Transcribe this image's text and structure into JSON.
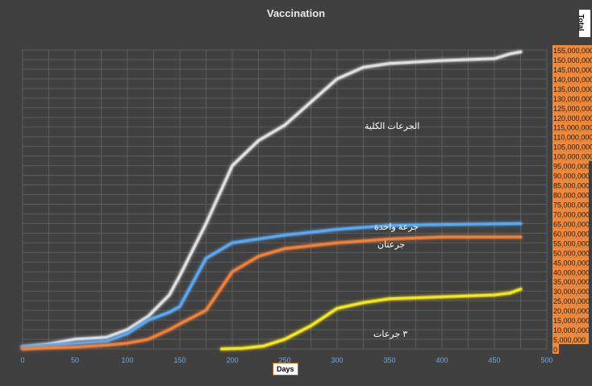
{
  "chart_data": {
    "type": "line",
    "title": "Vaccination",
    "xlabel": "Days",
    "ylabel": "Total",
    "xlim": [
      0,
      500
    ],
    "ylim": [
      0,
      155000000
    ],
    "x_ticks": [
      "0",
      "50",
      "100",
      "150",
      "200",
      "250",
      "300",
      "350",
      "400",
      "450",
      "500"
    ],
    "y_ticks": [
      "0",
      "5,000,000",
      "10,000,000",
      "15,000,000",
      "20,000,000",
      "25,000,000",
      "30,000,000",
      "35,000,000",
      "40,000,000",
      "45,000,000",
      "50,000,000",
      "55,000,000",
      "60,000,000",
      "65,000,000",
      "70,000,000",
      "75,000,000",
      "80,000,000",
      "85,000,000",
      "90,000,000",
      "95,000,000",
      "100,000,000",
      "105,000,000",
      "110,000,000",
      "115,000,000",
      "120,000,000",
      "125,000,000",
      "130,000,000",
      "135,000,000",
      "140,000,000",
      "145,000,000",
      "150,000,000",
      "155,000,000"
    ],
    "grid": true,
    "y_axis_position": "right",
    "series": [
      {
        "name": "الجرعات الكلية",
        "color": "#e0e0e0",
        "x": [
          0,
          25,
          50,
          80,
          100,
          120,
          140,
          150,
          175,
          200,
          225,
          250,
          275,
          300,
          325,
          350,
          400,
          450,
          465,
          475
        ],
        "y": [
          1,
          2.5,
          5,
          6,
          10,
          17,
          28,
          38,
          65,
          95,
          108,
          116,
          128,
          140,
          146,
          148,
          149.5,
          150.5,
          153,
          154
        ]
      },
      {
        "name": "جرعة واحدة",
        "color": "#5aa8f0",
        "x": [
          0,
          25,
          50,
          80,
          100,
          120,
          140,
          150,
          175,
          200,
          225,
          250,
          300,
          350,
          400,
          475
        ],
        "y": [
          1,
          2,
          3,
          4,
          8,
          15,
          19,
          22,
          47,
          55,
          57,
          59,
          62,
          64,
          64.5,
          65
        ]
      },
      {
        "name": "جرعتان",
        "color": "#f0803a",
        "x": [
          0,
          25,
          50,
          80,
          100,
          120,
          140,
          150,
          175,
          200,
          225,
          250,
          300,
          350,
          400,
          475
        ],
        "y": [
          0,
          0.5,
          1,
          2,
          3,
          5,
          10,
          13,
          20,
          40,
          48,
          52,
          55,
          57,
          58,
          58
        ]
      },
      {
        "name": "٣ جرعات",
        "color": "#f5e620",
        "x": [
          190,
          210,
          230,
          250,
          275,
          300,
          325,
          350,
          400,
          450,
          465,
          475
        ],
        "y": [
          0,
          0.3,
          1.5,
          5,
          12,
          21,
          24,
          26,
          27,
          28,
          29,
          31
        ]
      }
    ]
  }
}
